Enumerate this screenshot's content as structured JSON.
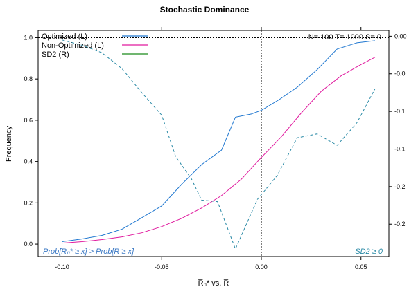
{
  "chart_data": {
    "type": "line",
    "title": "Stochastic Dominance",
    "xlabel": "R̅ₙ* vs. R̅",
    "ylabel": "Frequency",
    "xlim": [
      -0.112,
      0.064
    ],
    "ylim": [
      -0.06,
      1.035
    ],
    "ylim_right": [
      -0.293,
      0.0077
    ],
    "x_ticks": [
      -0.1,
      -0.05,
      0.0,
      0.05
    ],
    "x_tick_labels": [
      "-0.10",
      "-0.05",
      "0.00",
      "0.05"
    ],
    "y_ticks": [
      0.0,
      0.2,
      0.4,
      0.6,
      0.8,
      1.0
    ],
    "y_tick_labels": [
      "0.0",
      "0.2",
      "0.4",
      "0.6",
      "0.8",
      "1.0"
    ],
    "y_right_ticks": [
      0.0,
      -0.05,
      -0.1,
      -0.15,
      -0.2,
      -0.25
    ],
    "y_right_tick_labels": [
      "0.00",
      "-0.0",
      "-0.1",
      "-0.1",
      "-0.2",
      "-0.2"
    ],
    "vline_x": 0.0,
    "hline_y": 1.0,
    "grid": false,
    "legend_position": "top-left",
    "stats_text": "N= 100  T= 1000  S= 0",
    "annotation_left": "Prob[R̅ₙ* ≥ x] > Prob[R̅ ≥ x]",
    "annotation_right": "SD2 ≥ 0",
    "series": [
      {
        "name": "Optimized (L)",
        "color": "#1f77d0",
        "axis": "left",
        "dashed": false,
        "x": [
          -0.1,
          -0.09,
          -0.08,
          -0.07,
          -0.06,
          -0.05,
          -0.04,
          -0.03,
          -0.02,
          -0.013,
          -0.005,
          0.0,
          0.009,
          0.018,
          0.028,
          0.038,
          0.048,
          0.057
        ],
        "y": [
          0.012,
          0.025,
          0.042,
          0.072,
          0.128,
          0.185,
          0.29,
          0.385,
          0.455,
          0.615,
          0.63,
          0.648,
          0.7,
          0.76,
          0.845,
          0.945,
          0.975,
          0.985
        ]
      },
      {
        "name": "Non-Optimized (L)",
        "color": "#e0199e",
        "axis": "left",
        "dashed": false,
        "x": [
          -0.1,
          -0.09,
          -0.08,
          -0.07,
          -0.06,
          -0.05,
          -0.04,
          -0.03,
          -0.02,
          -0.01,
          0.0,
          0.01,
          0.02,
          0.03,
          0.04,
          0.05,
          0.057
        ],
        "y": [
          0.005,
          0.012,
          0.022,
          0.035,
          0.055,
          0.085,
          0.125,
          0.175,
          0.235,
          0.315,
          0.42,
          0.52,
          0.635,
          0.74,
          0.815,
          0.87,
          0.905
        ]
      },
      {
        "name": "SD2 (R)",
        "color": "#1b8a1b",
        "axis": "right",
        "dashed": false,
        "x": [],
        "y": []
      },
      {
        "name": "",
        "color": "#2a8aa6",
        "axis": "right",
        "dashed": true,
        "x": [
          -0.1,
          -0.09,
          -0.08,
          -0.07,
          -0.06,
          -0.05,
          -0.043,
          -0.035,
          -0.03,
          -0.022,
          -0.013,
          -0.002,
          0.008,
          0.018,
          0.028,
          0.038,
          0.048,
          0.057
        ],
        "y": [
          -0.005,
          -0.012,
          -0.022,
          -0.043,
          -0.075,
          -0.105,
          -0.16,
          -0.19,
          -0.218,
          -0.22,
          -0.283,
          -0.217,
          -0.185,
          -0.135,
          -0.13,
          -0.145,
          -0.115,
          -0.07
        ]
      }
    ]
  }
}
